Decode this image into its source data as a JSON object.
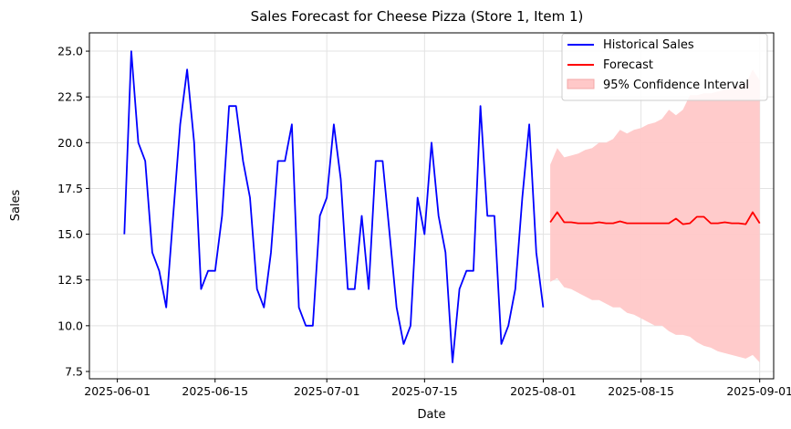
{
  "chart_data": {
    "type": "line",
    "title": "Sales Forecast for Cheese Pizza (Store 1, Item 1)",
    "xlabel": "Date",
    "ylabel": "Sales",
    "x_axis_type": "date",
    "xlim": [
      "2025-05-28",
      "2025-09-03"
    ],
    "ylim": [
      7.1,
      26.0
    ],
    "yticks": [
      7.5,
      10.0,
      12.5,
      15.0,
      17.5,
      20.0,
      22.5,
      25.0
    ],
    "ytick_labels": [
      "7.5",
      "10.0",
      "12.5",
      "15.0",
      "17.5",
      "20.0",
      "22.5",
      "25.0"
    ],
    "xticks": [
      "2025-06-01",
      "2025-06-15",
      "2025-07-01",
      "2025-07-15",
      "2025-08-01",
      "2025-08-15",
      "2025-09-01"
    ],
    "xtick_labels": [
      "2025-06-01",
      "2025-06-15",
      "2025-07-01",
      "2025-07-15",
      "2025-08-01",
      "2025-08-15",
      "2025-09-01"
    ],
    "grid": true,
    "legend_position": "top-right",
    "colors": {
      "historical": "#0000ff",
      "forecast": "#ff0000",
      "ci_fill": "#ffc8c8"
    },
    "series": [
      {
        "name": "Historical Sales",
        "start_date": "2025-06-02",
        "values": [
          15,
          25,
          20,
          19,
          14,
          13,
          11,
          16,
          21,
          24,
          20,
          12,
          13,
          13,
          16,
          22,
          22,
          19,
          17,
          12,
          11,
          14,
          19,
          19,
          21,
          11,
          10,
          10,
          16,
          17,
          21,
          18,
          12,
          12,
          16,
          12,
          19,
          19,
          15,
          11,
          9,
          10,
          17,
          15,
          20,
          16,
          14,
          8,
          12,
          13,
          13,
          22,
          16,
          16,
          9,
          10,
          12,
          17,
          21,
          14,
          11
        ]
      },
      {
        "name": "Forecast",
        "start_date": "2025-08-02",
        "values": [
          15.65,
          16.2,
          15.65,
          15.65,
          15.6,
          15.6,
          15.6,
          15.65,
          15.6,
          15.6,
          15.7,
          15.6,
          15.6,
          15.6,
          15.6,
          15.6,
          15.6,
          15.6,
          15.85,
          15.55,
          15.6,
          15.95,
          15.95,
          15.6,
          15.6,
          15.65,
          15.6,
          15.6,
          15.55,
          16.2,
          15.6
        ]
      },
      {
        "name": "95% Confidence Interval",
        "start_date": "2025-08-02",
        "upper": [
          18.8,
          19.7,
          19.2,
          19.3,
          19.4,
          19.6,
          19.7,
          20.0,
          20.0,
          20.2,
          20.7,
          20.5,
          20.7,
          20.8,
          21.0,
          21.1,
          21.3,
          21.8,
          21.5,
          21.8,
          22.6,
          22.6,
          22.7,
          22.7,
          22.8,
          22.9,
          23.0,
          23.1,
          23.2,
          24.0,
          23.4
        ],
        "lower": [
          12.4,
          12.6,
          12.1,
          12.0,
          11.8,
          11.6,
          11.4,
          11.4,
          11.2,
          11.0,
          11.0,
          10.7,
          10.6,
          10.4,
          10.2,
          10.0,
          10.0,
          9.7,
          9.5,
          9.5,
          9.4,
          9.1,
          8.9,
          8.8,
          8.6,
          8.5,
          8.4,
          8.3,
          8.2,
          8.4,
          8.0
        ]
      }
    ]
  }
}
